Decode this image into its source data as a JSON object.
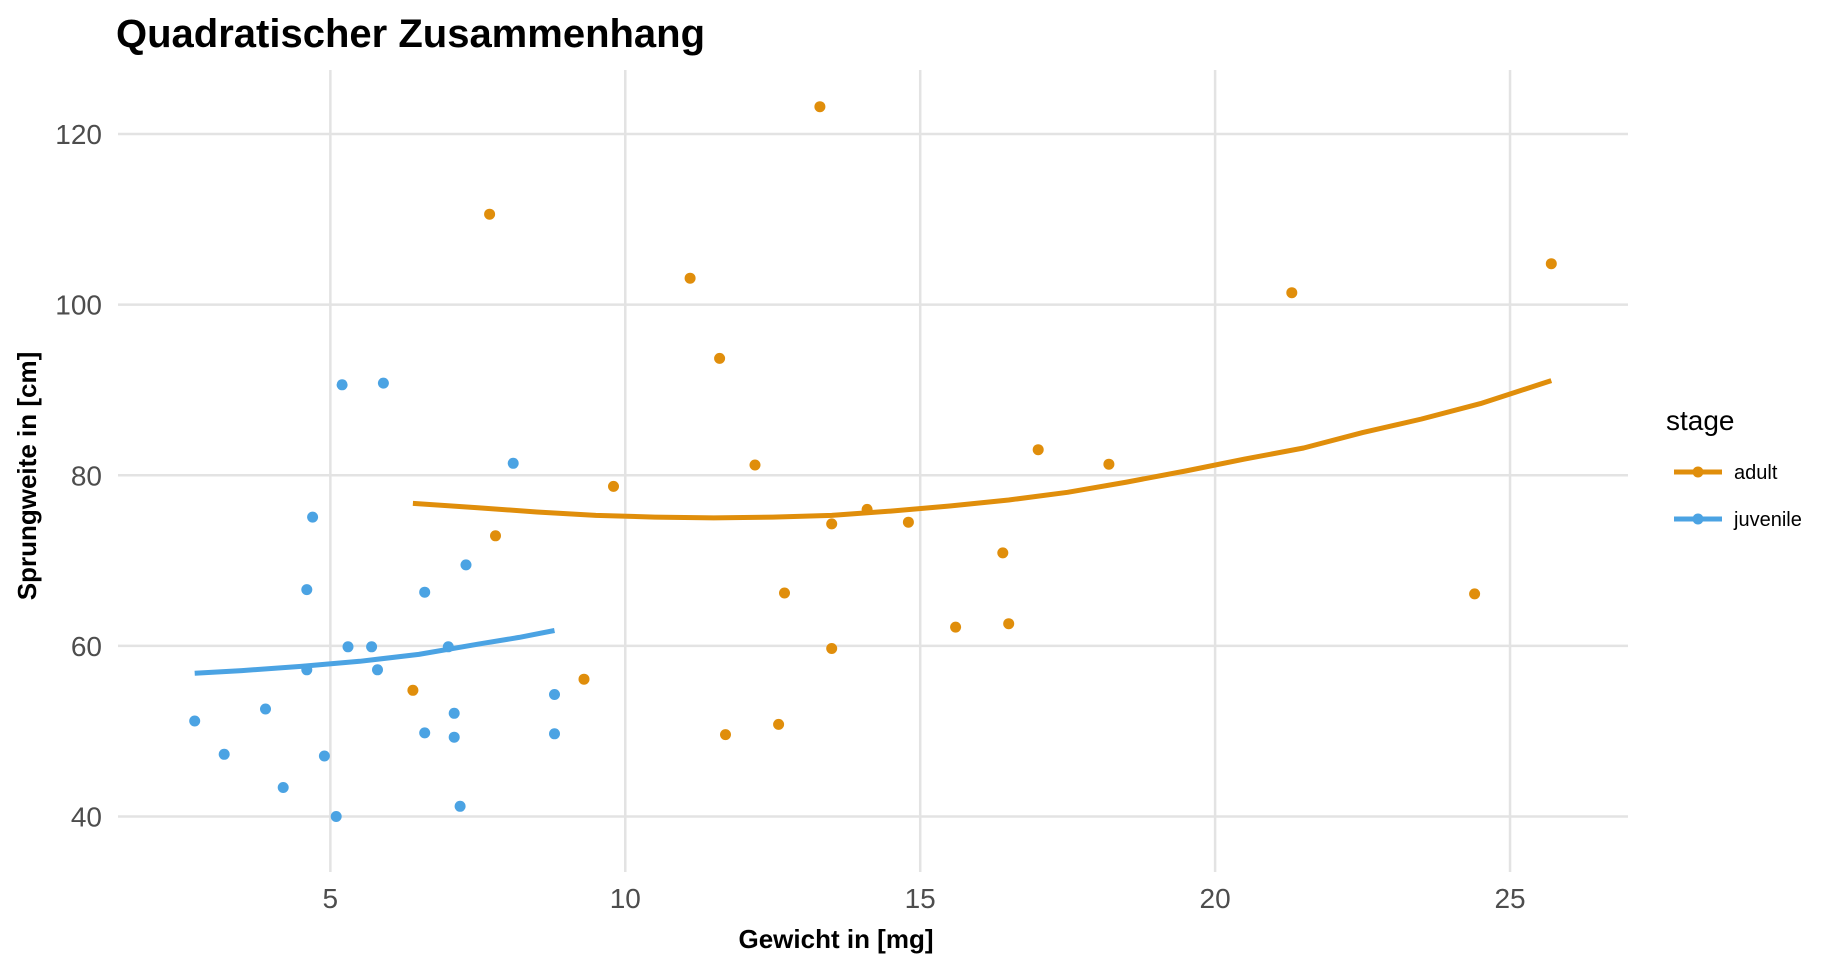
{
  "chart_data": {
    "type": "scatter",
    "title": "Quadratischer Zusammenhang",
    "xlabel": "Gewicht in [mg]",
    "ylabel": "Sprungweite in [cm]",
    "xlim": [
      1.4,
      27.0
    ],
    "ylim": [
      33.5,
      127.5
    ],
    "xticks": [
      5,
      10,
      15,
      20,
      25
    ],
    "yticks": [
      40,
      60,
      80,
      100,
      120
    ],
    "grid": true,
    "legend": {
      "title": "stage",
      "position": "right"
    },
    "series": [
      {
        "name": "adult",
        "color": "#E08E0B",
        "points": [
          [
            13.3,
            123.2
          ],
          [
            7.7,
            110.6
          ],
          [
            11.1,
            103.1
          ],
          [
            25.7,
            104.8
          ],
          [
            21.3,
            101.4
          ],
          [
            11.6,
            93.7
          ],
          [
            17.0,
            83.0
          ],
          [
            18.2,
            81.3
          ],
          [
            12.2,
            81.2
          ],
          [
            9.8,
            78.7
          ],
          [
            14.1,
            76.0
          ],
          [
            14.8,
            74.5
          ],
          [
            13.5,
            74.3
          ],
          [
            7.8,
            72.9
          ],
          [
            16.4,
            70.9
          ],
          [
            12.7,
            66.2
          ],
          [
            24.4,
            66.1
          ],
          [
            16.5,
            62.6
          ],
          [
            15.6,
            62.2
          ],
          [
            13.5,
            59.7
          ],
          [
            9.3,
            56.1
          ],
          [
            6.4,
            54.8
          ],
          [
            12.6,
            50.8
          ],
          [
            11.7,
            49.6
          ]
        ],
        "fit": [
          [
            6.4,
            76.7
          ],
          [
            7.5,
            76.2
          ],
          [
            8.5,
            75.7
          ],
          [
            9.5,
            75.3
          ],
          [
            10.5,
            75.1
          ],
          [
            11.5,
            75.0
          ],
          [
            12.5,
            75.1
          ],
          [
            13.5,
            75.3
          ],
          [
            14.5,
            75.8
          ],
          [
            15.5,
            76.4
          ],
          [
            16.5,
            77.1
          ],
          [
            17.5,
            78.0
          ],
          [
            18.5,
            79.2
          ],
          [
            19.5,
            80.5
          ],
          [
            20.5,
            81.9
          ],
          [
            21.5,
            83.2
          ],
          [
            22.5,
            85.0
          ],
          [
            23.5,
            86.6
          ],
          [
            24.5,
            88.4
          ],
          [
            25.7,
            91.1
          ]
        ]
      },
      {
        "name": "juvenile",
        "color": "#4BA3E3",
        "points": [
          [
            5.9,
            90.8
          ],
          [
            5.2,
            90.6
          ],
          [
            8.1,
            81.4
          ],
          [
            4.7,
            75.1
          ],
          [
            7.3,
            69.5
          ],
          [
            4.6,
            66.6
          ],
          [
            6.6,
            66.3
          ],
          [
            5.3,
            59.9
          ],
          [
            5.7,
            59.9
          ],
          [
            7.0,
            59.9
          ],
          [
            4.6,
            57.2
          ],
          [
            5.8,
            57.2
          ],
          [
            8.8,
            54.3
          ],
          [
            3.9,
            52.6
          ],
          [
            7.1,
            52.1
          ],
          [
            2.7,
            51.2
          ],
          [
            6.6,
            49.8
          ],
          [
            8.8,
            49.7
          ],
          [
            7.1,
            49.3
          ],
          [
            3.2,
            47.3
          ],
          [
            4.9,
            47.1
          ],
          [
            4.2,
            43.4
          ],
          [
            7.2,
            41.2
          ],
          [
            5.1,
            40.0
          ]
        ],
        "fit": [
          [
            2.7,
            56.8
          ],
          [
            3.5,
            57.1
          ],
          [
            4.5,
            57.6
          ],
          [
            5.5,
            58.2
          ],
          [
            6.5,
            59.0
          ],
          [
            7.5,
            60.2
          ],
          [
            8.2,
            61.0
          ],
          [
            8.8,
            61.8
          ]
        ]
      }
    ]
  }
}
